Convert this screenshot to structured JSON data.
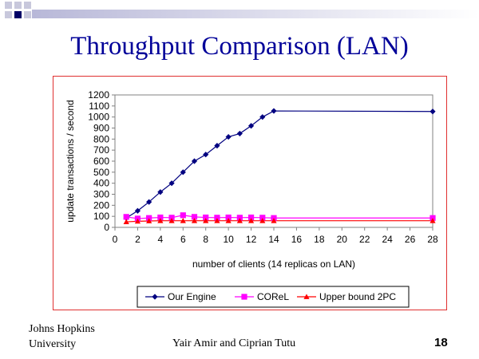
{
  "slide": {
    "title": "Throughput Comparison (LAN)",
    "footer_left_line1": "Johns Hopkins",
    "footer_left_line2": "University",
    "footer_center": "Yair Amir and Ciprian Tutu",
    "page_number": "18"
  },
  "colors": {
    "title": "#000099",
    "frame": "#e03030",
    "deco_square": "#c8c8dc",
    "deco_accent": "#000066"
  },
  "chart_data": {
    "type": "line",
    "title": "",
    "xlabel": "number of clients (14 replicas on LAN)",
    "ylabel": "update transactions / second",
    "xlim": [
      0,
      28
    ],
    "ylim": [
      0,
      1200
    ],
    "x_ticks": [
      0,
      2,
      4,
      6,
      8,
      10,
      12,
      14,
      16,
      18,
      20,
      22,
      24,
      26,
      28
    ],
    "y_ticks": [
      0,
      100,
      200,
      300,
      400,
      500,
      600,
      700,
      800,
      900,
      1000,
      1100,
      1200
    ],
    "grid": false,
    "legend": "bottom",
    "series": [
      {
        "name": "Our Engine",
        "color": "#000080",
        "marker": "diamond",
        "x": [
          1,
          2,
          3,
          4,
          5,
          6,
          7,
          8,
          9,
          10,
          11,
          12,
          13,
          14,
          28
        ],
        "y": [
          85,
          150,
          230,
          320,
          400,
          500,
          600,
          660,
          740,
          820,
          850,
          920,
          1000,
          1055,
          1050
        ]
      },
      {
        "name": "COReL",
        "color": "#ff00ff",
        "marker": "square",
        "x": [
          1,
          2,
          3,
          4,
          5,
          6,
          7,
          8,
          9,
          10,
          11,
          12,
          13,
          14,
          28
        ],
        "y": [
          95,
          80,
          85,
          90,
          88,
          110,
          95,
          90,
          88,
          90,
          88,
          90,
          88,
          85,
          85
        ]
      },
      {
        "name": "Upper bound 2PC",
        "color": "#ff0000",
        "marker": "triangle",
        "x": [
          1,
          2,
          3,
          4,
          5,
          6,
          7,
          8,
          9,
          10,
          11,
          12,
          13,
          14,
          28
        ],
        "y": [
          50,
          55,
          58,
          60,
          60,
          60,
          60,
          60,
          60,
          60,
          60,
          60,
          60,
          60,
          60
        ]
      }
    ]
  }
}
